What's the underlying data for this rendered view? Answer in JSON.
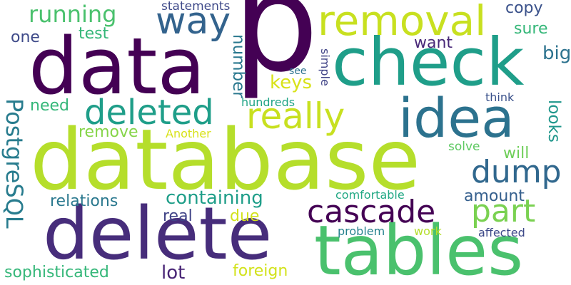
{
  "words": [
    {
      "text": "p",
      "color": "#440154"
    },
    {
      "text": "database",
      "color": "#b5de2b"
    },
    {
      "text": "data",
      "color": "#440154"
    },
    {
      "text": "check",
      "color": "#1f9e89"
    },
    {
      "text": "delete",
      "color": "#472d7b"
    },
    {
      "text": "tables",
      "color": "#4ac16d"
    },
    {
      "text": "idea",
      "color": "#2c728e"
    },
    {
      "text": "removal",
      "color": "#c8e020"
    },
    {
      "text": "way",
      "color": "#33638d"
    },
    {
      "text": "deleted",
      "color": "#1f9e89"
    },
    {
      "text": "really",
      "color": "#c8e020"
    },
    {
      "text": "cascade",
      "color": "#440154"
    },
    {
      "text": "dump",
      "color": "#31688e"
    },
    {
      "text": "part",
      "color": "#7ad151"
    },
    {
      "text": "running",
      "color": "#4ac16d"
    },
    {
      "text": "test",
      "color": "#35b779"
    },
    {
      "text": "one",
      "color": "#3e4a89"
    },
    {
      "text": "statements",
      "color": "#3e4989"
    },
    {
      "text": "copy",
      "color": "#3b528b"
    },
    {
      "text": "sure",
      "color": "#35b779"
    },
    {
      "text": "want",
      "color": "#482878"
    },
    {
      "text": "big",
      "color": "#2c728e"
    },
    {
      "text": "number",
      "color": "#2a788e"
    },
    {
      "text": "keys",
      "color": "#d8e219"
    },
    {
      "text": "see",
      "color": "#2c728e"
    },
    {
      "text": "simple",
      "color": "#414487"
    },
    {
      "text": "hundreds",
      "color": "#20a486"
    },
    {
      "text": "think",
      "color": "#3b528b"
    },
    {
      "text": "looks",
      "color": "#1f968b"
    },
    {
      "text": "PostgreSQL",
      "color": "#287c8e"
    },
    {
      "text": "need",
      "color": "#35b779"
    },
    {
      "text": "remove",
      "color": "#86d549"
    },
    {
      "text": "Another",
      "color": "#d8e219"
    },
    {
      "text": "solve",
      "color": "#5ec962"
    },
    {
      "text": "will",
      "color": "#6ece58"
    },
    {
      "text": "containing",
      "color": "#1f9e89"
    },
    {
      "text": "relations",
      "color": "#2a788e"
    },
    {
      "text": "amount",
      "color": "#355f8d"
    },
    {
      "text": "comfortable",
      "color": "#22a884"
    },
    {
      "text": "real",
      "color": "#414487"
    },
    {
      "text": "due",
      "color": "#d2e21b"
    },
    {
      "text": "problem",
      "color": "#26828e"
    },
    {
      "text": "work",
      "color": "#b5de2b"
    },
    {
      "text": "affected",
      "color": "#3e4a89"
    },
    {
      "text": "sophisticated",
      "color": "#35b779"
    },
    {
      "text": "lot",
      "color": "#482475"
    },
    {
      "text": "foreign",
      "color": "#d2e21b"
    }
  ]
}
